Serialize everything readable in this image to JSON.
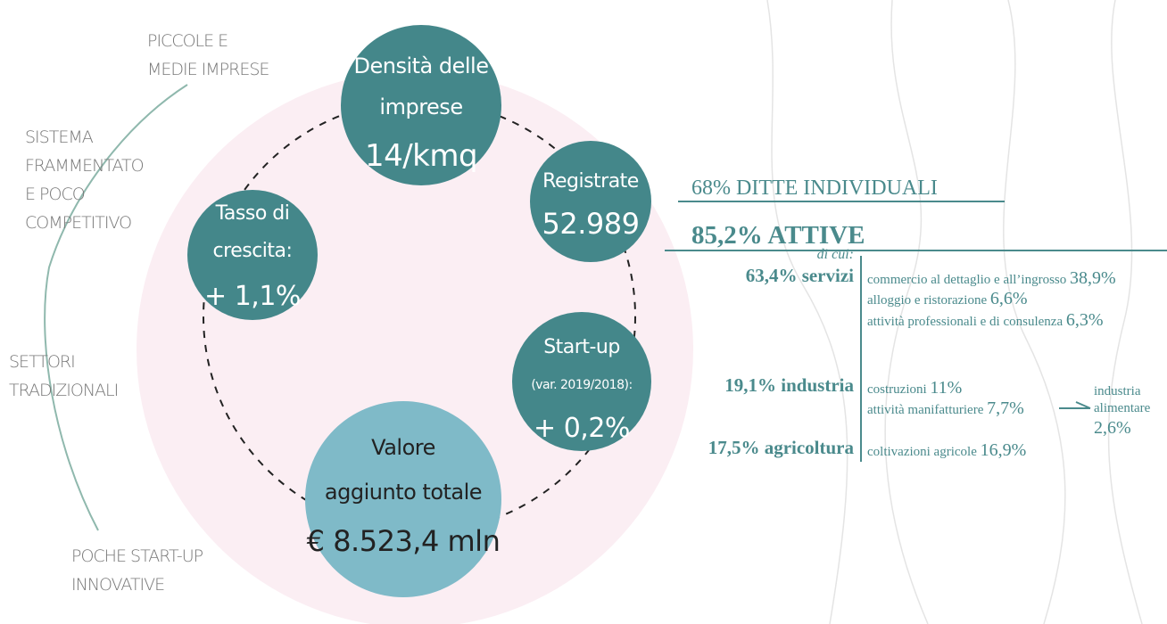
{
  "left_labels": [
    {
      "lines": [
        "PICCOLE E",
        "MEDIE IMPRESE"
      ]
    },
    {
      "lines": [
        "SISTEMA",
        "FRAMMENTATO",
        "E POCO",
        "COMPETITIVO"
      ]
    },
    {
      "lines": [
        "SETTORI",
        "TRADIZIONALI"
      ]
    },
    {
      "lines": [
        "POCHE START-UP",
        "INNOVATIVE"
      ]
    }
  ],
  "circles": [
    {
      "lines": [
        "Densità delle",
        "imprese"
      ],
      "value": "14/kmq"
    },
    {
      "lines": [
        "Registrate"
      ],
      "value": "52.989"
    },
    {
      "lines": [
        "Start-up",
        "(var. 2019/2018):"
      ],
      "value": "+ 0,2%"
    },
    {
      "lines": [
        "Valore",
        "aggiunto totale"
      ],
      "value": "€ 8.523,4 mln"
    },
    {
      "lines": [
        "Tasso di",
        "crescita:"
      ],
      "value": "+ 1,1%"
    }
  ],
  "summary": {
    "individual": "68% DITTE INDIVIDUALI",
    "active": "85,2% ATTIVE",
    "of_which": "di cui:"
  },
  "sectors": [
    {
      "name": "63,4% servizi",
      "items": [
        {
          "label": "commercio al dettaglio e all’ingrosso",
          "value": "38,9%"
        },
        {
          "label": "alloggio e ristorazione",
          "value": "6,6%"
        },
        {
          "label": "attività professionali e di consulenza",
          "value": "6,3%"
        }
      ]
    },
    {
      "name": "19,1% industria",
      "items": [
        {
          "label": "costruzioni",
          "value": "11%"
        },
        {
          "label": "attività manifatturiere",
          "value": "7,7%"
        }
      ]
    },
    {
      "name": "17,5% agricoltura",
      "items": [
        {
          "label": "coltivazioni agricole",
          "value": "16,9%"
        }
      ]
    }
  ],
  "sub_item": {
    "lines": [
      "industria",
      "alimentare"
    ],
    "value": "2,6%"
  }
}
